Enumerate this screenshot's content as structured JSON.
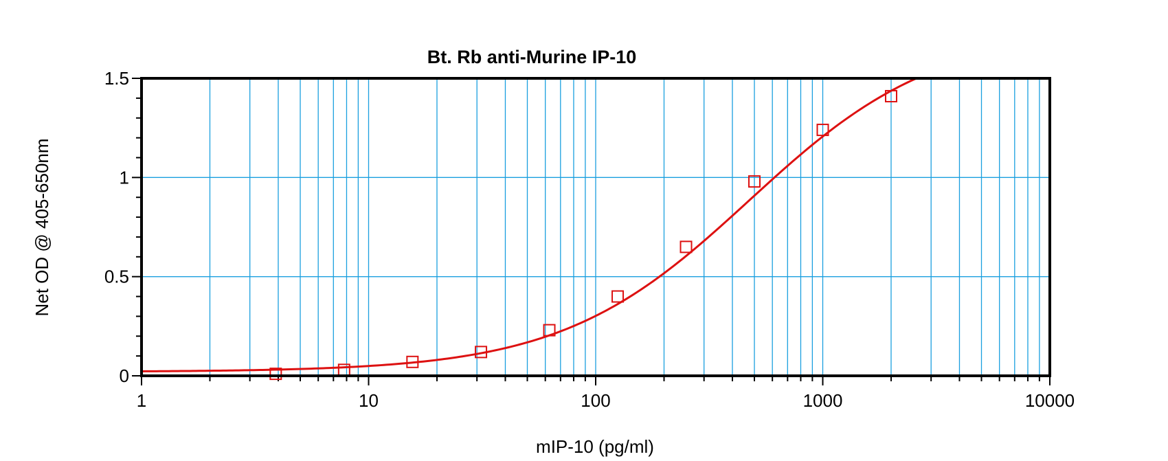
{
  "chart_data": {
    "type": "scatter",
    "title": "Bt. Rb anti-Murine IP-10",
    "xlabel": "mIP-10 (pg/ml)",
    "ylabel": "Net OD @ 405-650nm",
    "x_scale": "log",
    "xlim": [
      1,
      10000
    ],
    "ylim": [
      0,
      1.5
    ],
    "x_ticks": [
      1,
      10,
      100,
      1000,
      10000
    ],
    "x_tick_labels": [
      "1",
      "10",
      "100",
      "1000",
      "10000"
    ],
    "y_ticks": [
      0,
      0.5,
      1,
      1.5
    ],
    "y_tick_labels": [
      "0",
      "0.5",
      "1",
      "1.5"
    ],
    "grid": true,
    "series": [
      {
        "marker": "square",
        "x": [
          3.9,
          7.8,
          15.6,
          31.25,
          62.5,
          125,
          250,
          500,
          1000,
          2000
        ],
        "y": [
          0.01,
          0.03,
          0.07,
          0.12,
          0.23,
          0.4,
          0.65,
          0.98,
          1.24,
          1.41
        ]
      }
    ],
    "fit_curve": {
      "type": "4PL",
      "bottom": 0.02,
      "top": 1.75,
      "ec50": 475,
      "hill": 1.05
    },
    "colors": {
      "series": "#dd1111",
      "grid": "#1a9fdf",
      "frame": "#000000"
    }
  }
}
